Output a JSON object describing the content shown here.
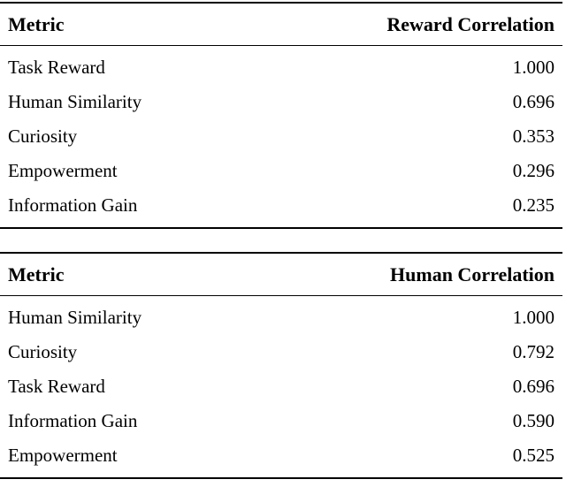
{
  "page": {
    "background": "#ffffff",
    "text_color": "#000000",
    "rule_color": "#000000"
  },
  "tables": [
    {
      "name": "reward-correlation",
      "columns": [
        "Metric",
        "Reward Correlation"
      ],
      "rows": [
        {
          "metric": "Task Reward",
          "value": "1.000"
        },
        {
          "metric": "Human Similarity",
          "value": "0.696"
        },
        {
          "metric": "Curiosity",
          "value": "0.353"
        },
        {
          "metric": "Empowerment",
          "value": "0.296"
        },
        {
          "metric": "Information Gain",
          "value": "0.235"
        }
      ]
    },
    {
      "name": "human-correlation",
      "columns": [
        "Metric",
        "Human Correlation"
      ],
      "rows": [
        {
          "metric": "Human Similarity",
          "value": "1.000"
        },
        {
          "metric": "Curiosity",
          "value": "0.792"
        },
        {
          "metric": "Task Reward",
          "value": "0.696"
        },
        {
          "metric": "Information Gain",
          "value": "0.590"
        },
        {
          "metric": "Empowerment",
          "value": "0.525"
        }
      ]
    }
  ]
}
